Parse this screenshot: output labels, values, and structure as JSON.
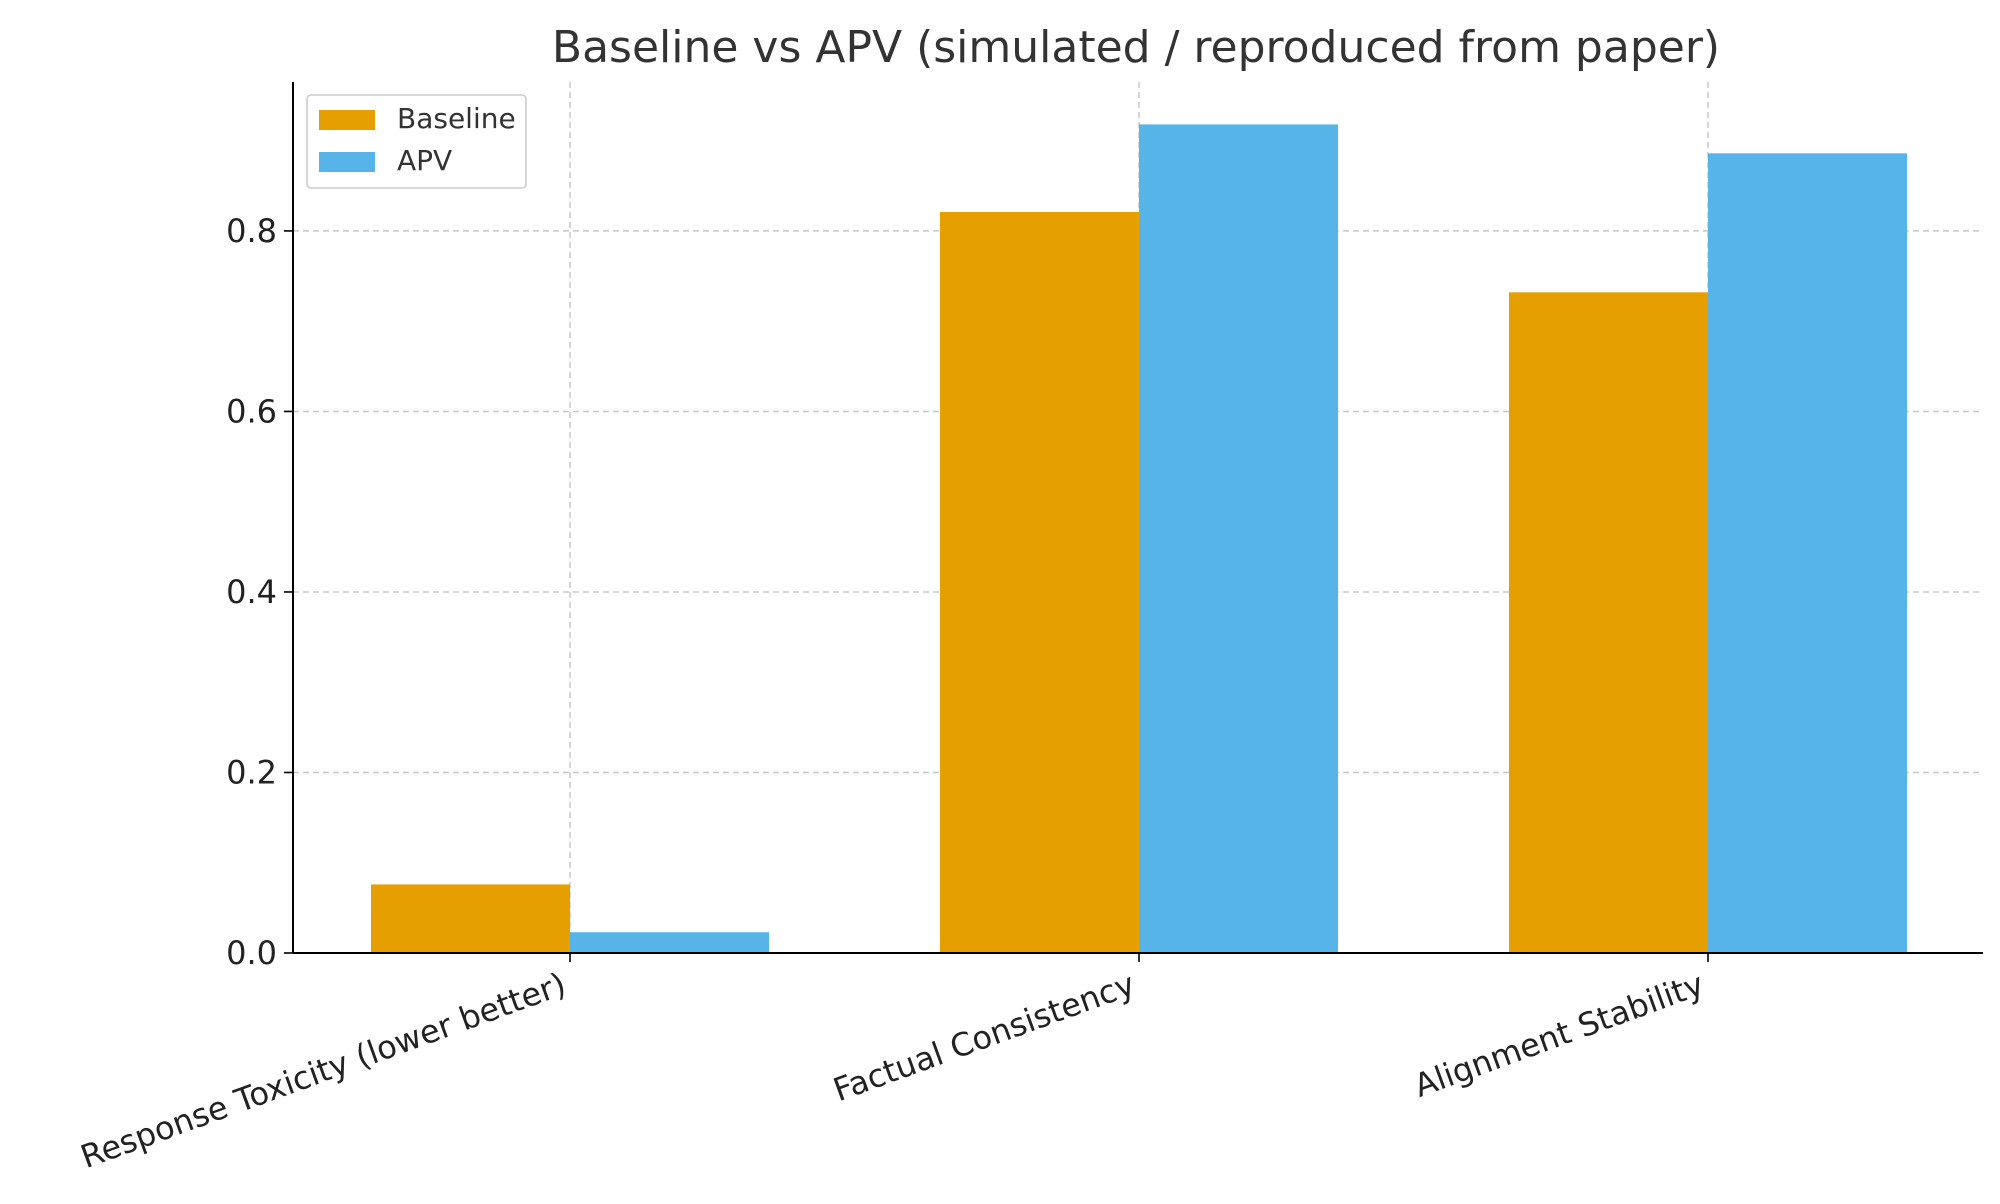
{
  "chart_data": {
    "type": "bar",
    "title": "Baseline vs APV (simulated / reproduced from paper)",
    "xlabel": "",
    "ylabel": "",
    "categories": [
      "Response Toxicity (lower better)",
      "Factual Consistency",
      "Alignment Stability"
    ],
    "series": [
      {
        "name": "Baseline",
        "color": "#E69F00",
        "values": [
          0.076,
          0.821,
          0.732
        ]
      },
      {
        "name": "APV",
        "color": "#56B4E9",
        "values": [
          0.023,
          0.918,
          0.886
        ]
      }
    ],
    "ylim": [
      0,
      0.965
    ],
    "yticks": [
      0.0,
      0.2,
      0.4,
      0.6,
      0.8
    ],
    "ytick_labels": [
      "0.0",
      "0.2",
      "0.4",
      "0.6",
      "0.8"
    ],
    "grid": true,
    "legend_position": "top-left"
  }
}
